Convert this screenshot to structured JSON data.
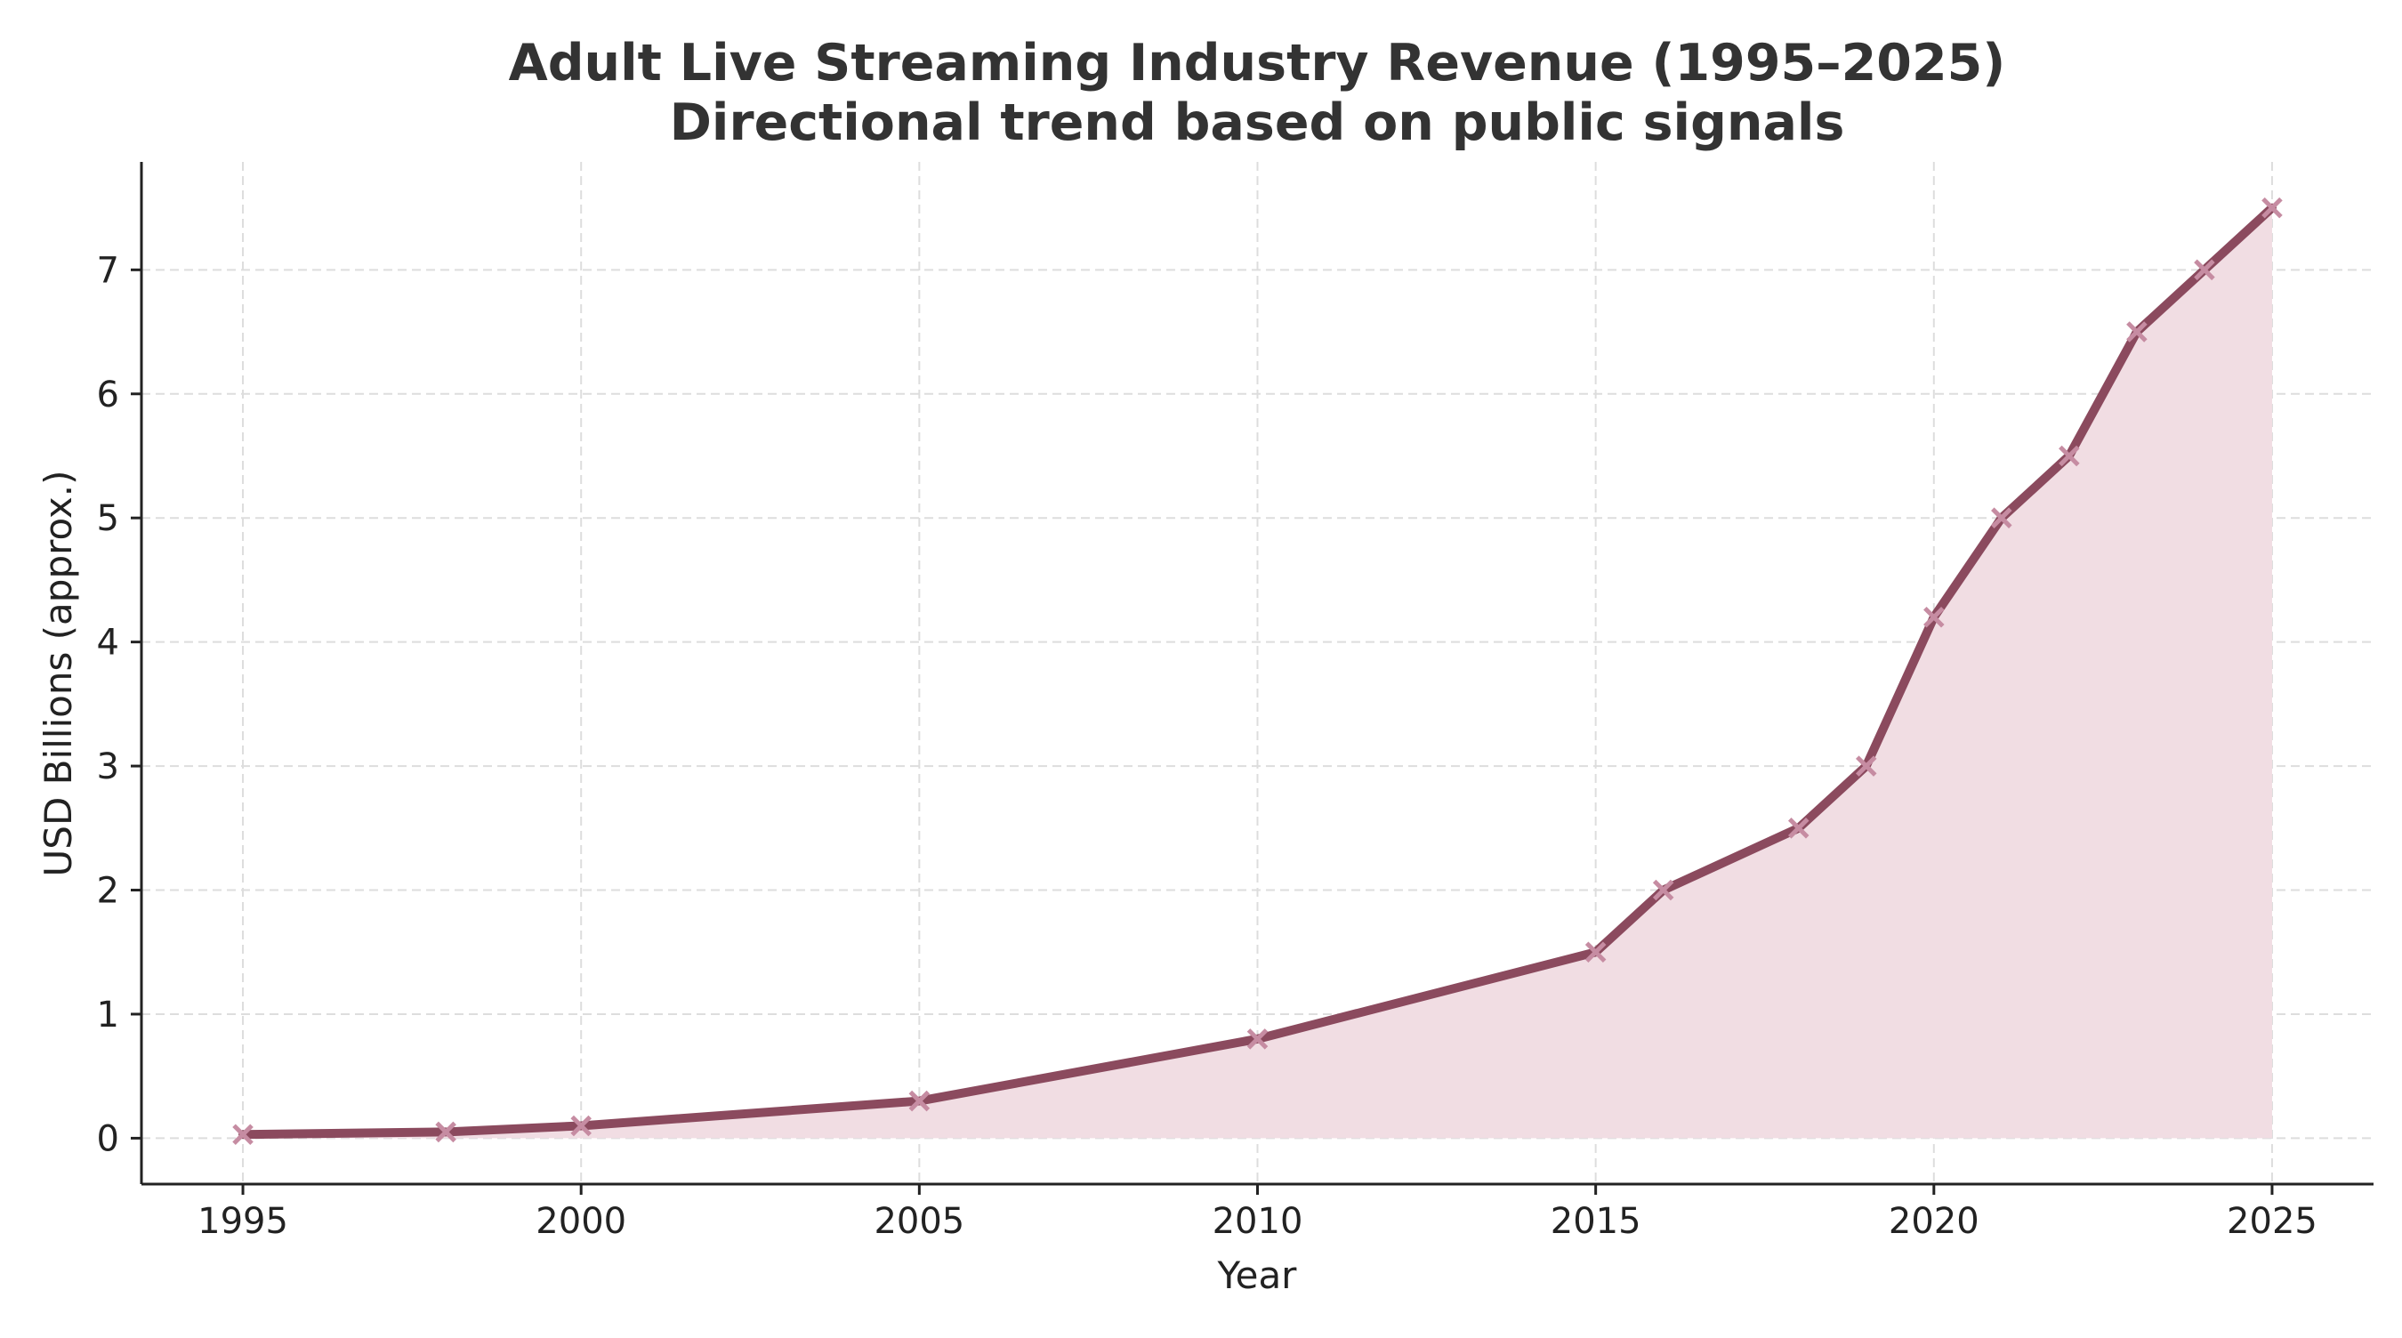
{
  "chart_data": {
    "type": "area",
    "title": "Adult Live Streaming Industry Revenue (1995–2025)",
    "subtitle": "Directional trend based on public signals",
    "xlabel": "Year",
    "ylabel": "USD Billions (approx.)",
    "x": [
      1995,
      1998,
      2000,
      2005,
      2010,
      2015,
      2016,
      2018,
      2019,
      2020,
      2021,
      2022,
      2023,
      2024,
      2025
    ],
    "values": [
      0.03,
      0.05,
      0.1,
      0.3,
      0.8,
      1.5,
      2.0,
      2.5,
      3.0,
      4.2,
      5.0,
      5.5,
      6.5,
      7.0,
      7.5
    ],
    "xlim": [
      1993.5,
      2026.5
    ],
    "ylim": [
      -0.37,
      7.87
    ],
    "xticks": [
      1995,
      2000,
      2005,
      2010,
      2015,
      2020,
      2025
    ],
    "yticks": [
      0,
      1,
      2,
      3,
      4,
      5,
      6,
      7
    ],
    "grid": true,
    "marker": "x",
    "colors": {
      "line": "#8b4a5e",
      "marker": "#c68ca2",
      "fill": "#f1dde3",
      "grid": "#dddddd",
      "axis": "#222222"
    }
  }
}
